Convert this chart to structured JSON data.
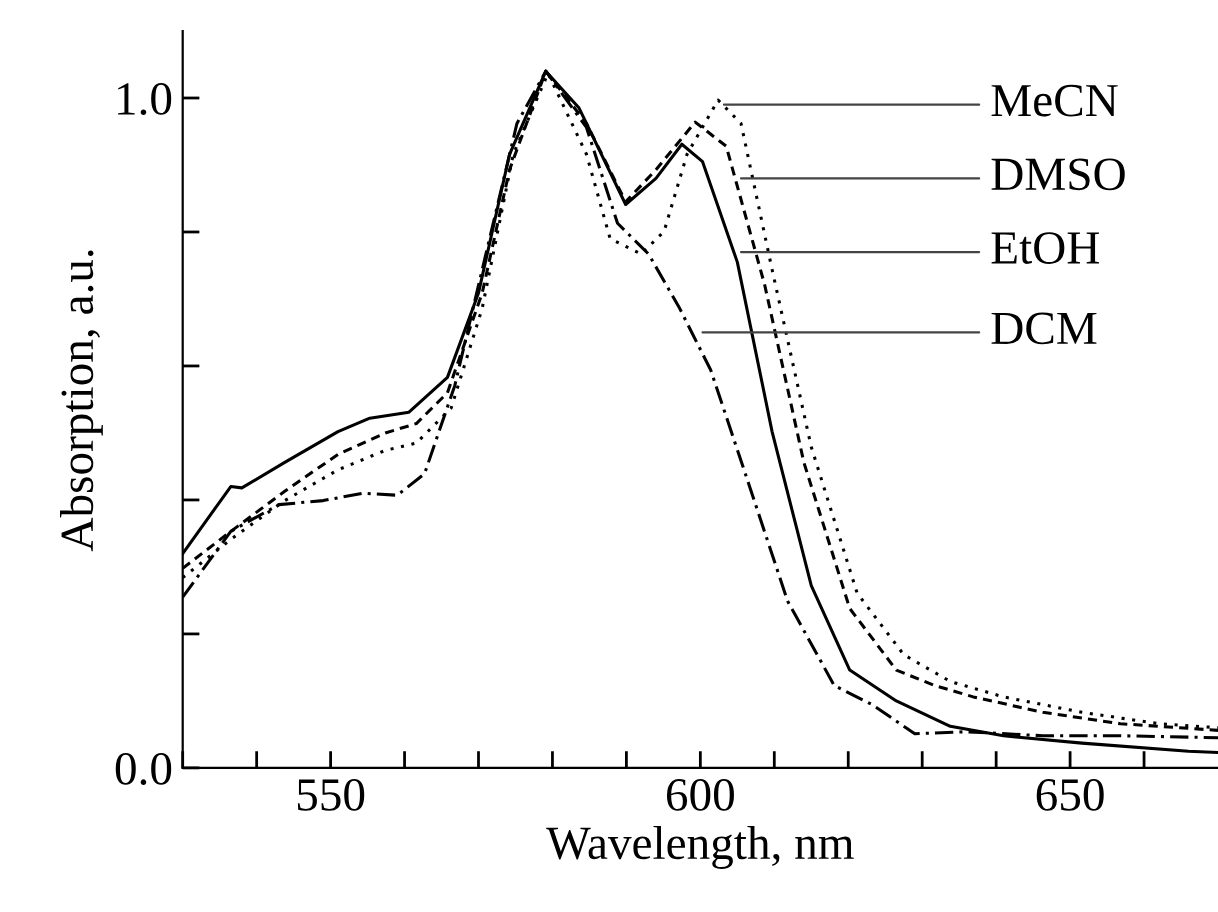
{
  "chart_data": {
    "type": "line",
    "xlabel": "Wavelength, nm",
    "ylabel": "Absorption, a.u.",
    "xlim": [
      530,
      670
    ],
    "ylim": [
      0,
      1.1
    ],
    "xticks": [
      {
        "value": 530,
        "label": null
      },
      {
        "value": 540,
        "label": null
      },
      550,
      {
        "value": 560,
        "label": null
      },
      {
        "value": 570,
        "label": null
      },
      {
        "value": 580,
        "label": null
      },
      {
        "value": 590,
        "label": null
      },
      600,
      {
        "value": 610,
        "label": null
      },
      {
        "value": 620,
        "label": null
      },
      {
        "value": 630,
        "label": null
      },
      {
        "value": 640,
        "label": null
      },
      650,
      {
        "value": 660,
        "label": null
      }
    ],
    "yticks": [
      {
        "value": 0,
        "label": "0.0"
      },
      {
        "value": 0.2,
        "label": null
      },
      {
        "value": 0.4,
        "label": null
      },
      {
        "value": 0.6,
        "label": null
      },
      {
        "value": 0.8,
        "label": null
      },
      {
        "value": 1.0,
        "label": "1.0"
      }
    ],
    "grid": false,
    "legend": false,
    "annotations": [
      {
        "text": "MeCN",
        "x": 603.2,
        "y": 0.99
      },
      {
        "text": "DMSO",
        "x": 605.5,
        "y": 0.88
      },
      {
        "text": "EtOH",
        "x": 605.5,
        "y": 0.77
      },
      {
        "text": "DCM",
        "x": 600.3,
        "y": 0.65
      }
    ],
    "series": [
      {
        "color": "#000000",
        "line_style": "dotted",
        "x": [
          530,
          536.5,
          543.8,
          551,
          557.4,
          561.6,
          566.3,
          570.5,
          574.7,
          579.4,
          584.6,
          587.8,
          592,
          595.1,
          598.2,
          602.4,
          605.5,
          609.7,
          615,
          621.2,
          627.5,
          633.8,
          641,
          651.6,
          662,
          670
        ],
        "values": [
          0.284,
          0.341,
          0.399,
          0.445,
          0.474,
          0.485,
          0.537,
          0.686,
          0.916,
          1.037,
          0.916,
          0.79,
          0.767,
          0.801,
          0.916,
          0.997,
          0.962,
          0.744,
          0.479,
          0.261,
          0.169,
          0.129,
          0.106,
          0.083,
          0.066,
          0.06
        ]
      },
      {
        "color": "#000000",
        "line_style": "dashed",
        "x": [
          530,
          536.5,
          543.8,
          551,
          557.4,
          561.6,
          565.8,
          570.5,
          574.2,
          579.1,
          584.6,
          589.9,
          594,
          599.3,
          603.5,
          608.7,
          614,
          620.2,
          626.5,
          631.7,
          636.9,
          646.3,
          656.8,
          670
        ],
        "values": [
          0.298,
          0.353,
          0.413,
          0.468,
          0.5,
          0.514,
          0.56,
          0.709,
          0.893,
          1.04,
          0.962,
          0.845,
          0.893,
          0.964,
          0.928,
          0.721,
          0.456,
          0.238,
          0.146,
          0.123,
          0.106,
          0.083,
          0.066,
          0.056
        ]
      },
      {
        "color": "#000000",
        "line_style": "solid",
        "x": [
          530,
          536.5,
          538,
          543.8,
          551,
          555.3,
          560.6,
          565.8,
          570,
          574.2,
          579.1,
          583.6,
          589.9,
          594,
          597.5,
          600.3,
          605,
          609.7,
          615,
          620.2,
          626.5,
          633.8,
          641,
          651.6,
          666,
          670
        ],
        "values": [
          0.32,
          0.42,
          0.418,
          0.456,
          0.502,
          0.522,
          0.531,
          0.583,
          0.709,
          0.916,
          1.04,
          0.985,
          0.841,
          0.88,
          0.931,
          0.905,
          0.755,
          0.502,
          0.272,
          0.146,
          0.1,
          0.062,
          0.048,
          0.037,
          0.025,
          0.023
        ]
      },
      {
        "color": "#000000",
        "line_style": "dashdot",
        "x": [
          530,
          536.5,
          543,
          549,
          554.3,
          559,
          562.7,
          566.8,
          571,
          575.2,
          579.1,
          584.6,
          588.8,
          593,
          597.2,
          601.4,
          606.6,
          611.8,
          618.1,
          623.3,
          629,
          635.9,
          646.3,
          656.8,
          670
        ],
        "values": [
          0.255,
          0.353,
          0.393,
          0.399,
          0.41,
          0.407,
          0.439,
          0.571,
          0.767,
          0.962,
          1.04,
          0.956,
          0.813,
          0.767,
          0.686,
          0.594,
          0.422,
          0.249,
          0.123,
          0.094,
          0.051,
          0.054,
          0.048,
          0.048,
          0.045
        ]
      }
    ]
  }
}
